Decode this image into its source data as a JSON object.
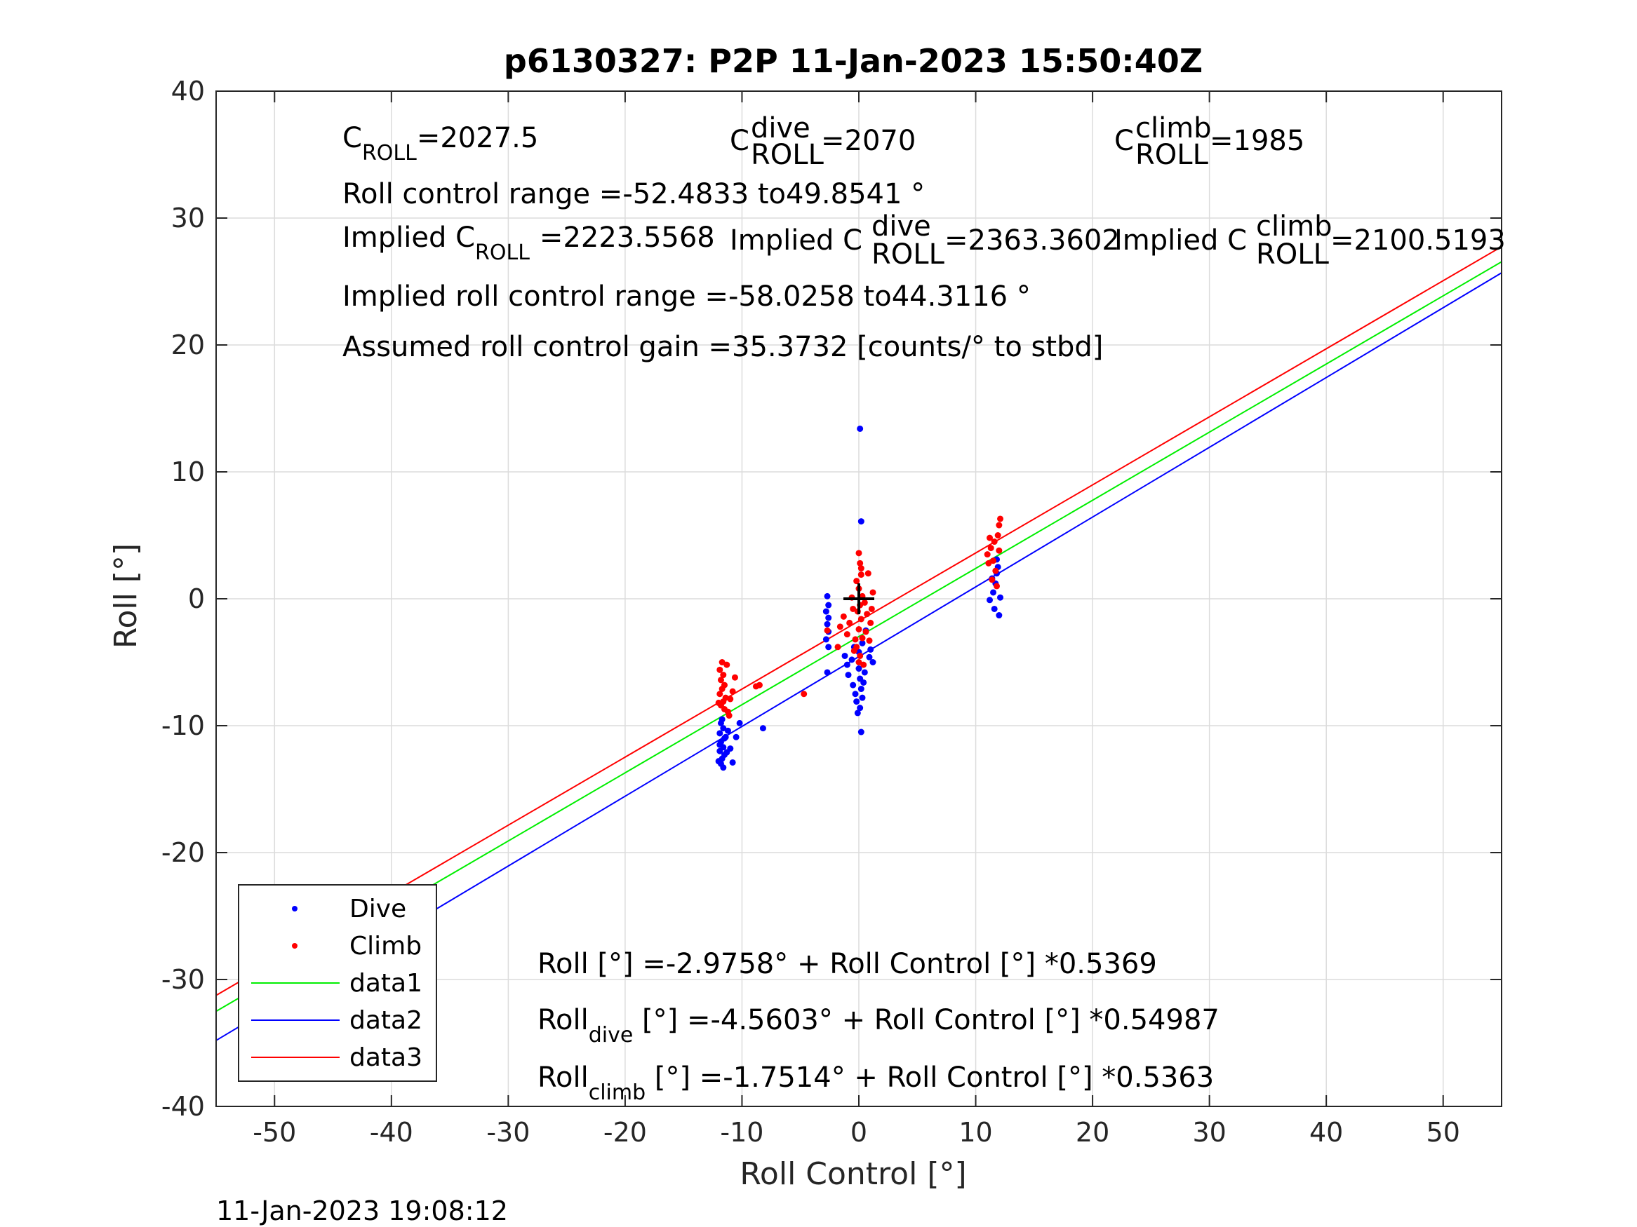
{
  "chart_data": {
    "type": "scatter",
    "title": "p6130327: P2P 11-Jan-2023 15:50:40Z",
    "xlabel": "Roll Control [°]",
    "ylabel": "Roll [°]",
    "xlim": [
      -55,
      55
    ],
    "ylim": [
      -40,
      40
    ],
    "xticks": [
      -50,
      -40,
      -30,
      -20,
      -10,
      0,
      10,
      20,
      30,
      40,
      50
    ],
    "yticks": [
      -40,
      -30,
      -20,
      -10,
      0,
      10,
      20,
      30,
      40
    ],
    "grid": true,
    "legend_position": "bottom-left",
    "timestamp": "11-Jan-2023 19:08:12",
    "series": [
      {
        "name": "Dive",
        "kind": "points",
        "color": "#0000ff",
        "points": [
          [
            -11.8,
            -9.8
          ],
          [
            -11.6,
            -10.2
          ],
          [
            -11.9,
            -10.6
          ],
          [
            -11.5,
            -11.0
          ],
          [
            -11.8,
            -11.3
          ],
          [
            -11.6,
            -11.7
          ],
          [
            -11.9,
            -12.0
          ],
          [
            -11.5,
            -12.3
          ],
          [
            -11.7,
            -12.6
          ],
          [
            -11.8,
            -13.0
          ],
          [
            -11.6,
            -13.3
          ],
          [
            -11.9,
            -11.5
          ],
          [
            -11.4,
            -10.9
          ],
          [
            -11.7,
            -9.5
          ],
          [
            -11.3,
            -12.1
          ],
          [
            -11.2,
            -10.4
          ],
          [
            -11.0,
            -11.8
          ],
          [
            -12.0,
            -12.8
          ],
          [
            -10.8,
            -12.9
          ],
          [
            -10.5,
            -10.9
          ],
          [
            -10.2,
            -9.8
          ],
          [
            -8.2,
            -10.2
          ],
          [
            -2.7,
            0.2
          ],
          [
            -2.6,
            -0.5
          ],
          [
            -2.8,
            -1.0
          ],
          [
            -2.6,
            -1.5
          ],
          [
            -2.7,
            -2.0
          ],
          [
            -2.6,
            -2.6
          ],
          [
            -2.8,
            -3.2
          ],
          [
            -2.6,
            -3.8
          ],
          [
            -2.7,
            -5.8
          ],
          [
            -1.2,
            -4.5
          ],
          [
            -1.0,
            -5.2
          ],
          [
            -0.9,
            -6.0
          ],
          [
            -0.6,
            -4.8
          ],
          [
            -0.5,
            -6.8
          ],
          [
            -0.3,
            -7.5
          ],
          [
            -0.2,
            -8.1
          ],
          [
            -0.1,
            -9.0
          ],
          [
            0.0,
            -5.5
          ],
          [
            0.1,
            -6.3
          ],
          [
            0.2,
            -7.1
          ],
          [
            0.3,
            -7.8
          ],
          [
            0.1,
            -8.6
          ],
          [
            0.2,
            -10.5
          ],
          [
            0.0,
            -4.2
          ],
          [
            0.3,
            -3.5
          ],
          [
            0.2,
            6.1
          ],
          [
            0.1,
            13.4
          ],
          [
            0.5,
            -5.8
          ],
          [
            0.4,
            -6.6
          ],
          [
            0.9,
            -4.6
          ],
          [
            1.0,
            -4.0
          ],
          [
            1.2,
            -5.0
          ],
          [
            -0.4,
            -3.8
          ],
          [
            0.6,
            -2.5
          ],
          [
            11.2,
            -0.1
          ],
          [
            11.5,
            0.5
          ],
          [
            11.7,
            1.2
          ],
          [
            11.4,
            1.6
          ],
          [
            11.8,
            2.0
          ],
          [
            11.9,
            2.5
          ],
          [
            12.0,
            -1.3
          ],
          [
            11.6,
            -0.8
          ],
          [
            11.8,
            3.1
          ],
          [
            12.1,
            0.1
          ]
        ]
      },
      {
        "name": "Climb",
        "kind": "points",
        "color": "#ff0000",
        "points": [
          [
            -11.7,
            -5.0
          ],
          [
            -11.3,
            -5.2
          ],
          [
            -11.9,
            -5.6
          ],
          [
            -11.6,
            -6.0
          ],
          [
            -11.8,
            -6.4
          ],
          [
            -11.5,
            -6.8
          ],
          [
            -11.7,
            -7.1
          ],
          [
            -11.9,
            -7.5
          ],
          [
            -11.4,
            -7.8
          ],
          [
            -11.6,
            -8.1
          ],
          [
            -11.8,
            -8.4
          ],
          [
            -11.5,
            -8.7
          ],
          [
            -11.2,
            -8.9
          ],
          [
            -11.0,
            -7.9
          ],
          [
            -12.0,
            -8.2
          ],
          [
            -10.8,
            -7.3
          ],
          [
            -10.6,
            -6.2
          ],
          [
            -11.1,
            -9.2
          ],
          [
            -8.5,
            -6.8
          ],
          [
            -8.8,
            -6.9
          ],
          [
            -4.7,
            -7.5
          ],
          [
            -2.7,
            -2.5
          ],
          [
            -1.8,
            -3.8
          ],
          [
            -1.6,
            -2.2
          ],
          [
            -1.3,
            -1.4
          ],
          [
            -1.0,
            -2.8
          ],
          [
            -0.8,
            -1.9
          ],
          [
            -0.5,
            -0.8
          ],
          [
            -0.3,
            -3.2
          ],
          [
            0.0,
            3.6
          ],
          [
            0.1,
            2.8
          ],
          [
            0.2,
            1.9
          ],
          [
            -0.2,
            1.4
          ],
          [
            0.0,
            0.8
          ],
          [
            0.3,
            0.2
          ],
          [
            0.1,
            -0.5
          ],
          [
            -0.1,
            -1.0
          ],
          [
            0.2,
            -1.6
          ],
          [
            0.0,
            -2.4
          ],
          [
            0.3,
            -3.1
          ],
          [
            -0.2,
            -3.8
          ],
          [
            0.1,
            -4.5
          ],
          [
            0.4,
            -5.2
          ],
          [
            0.5,
            -0.3
          ],
          [
            0.7,
            -1.2
          ],
          [
            0.8,
            2.0
          ],
          [
            1.0,
            -1.9
          ],
          [
            1.1,
            -0.8
          ],
          [
            1.2,
            0.5
          ],
          [
            0.6,
            -2.6
          ],
          [
            0.9,
            -3.3
          ],
          [
            -0.6,
            0.1
          ],
          [
            -0.4,
            -4.1
          ],
          [
            0.2,
            2.4
          ],
          [
            0.0,
            -5.0
          ],
          [
            11.0,
            3.5
          ],
          [
            11.3,
            4.0
          ],
          [
            11.6,
            4.5
          ],
          [
            11.9,
            5.0
          ],
          [
            12.0,
            5.8
          ],
          [
            12.1,
            6.3
          ],
          [
            11.5,
            3.0
          ],
          [
            11.2,
            4.8
          ],
          [
            11.7,
            2.2
          ],
          [
            11.4,
            1.5
          ],
          [
            11.8,
            1.0
          ],
          [
            12.0,
            3.8
          ],
          [
            11.1,
            2.8
          ]
        ]
      },
      {
        "name": "data1",
        "kind": "line",
        "color": "#00ee00",
        "intercept": -2.9758,
        "slope": 0.5369
      },
      {
        "name": "data2",
        "kind": "line",
        "color": "#0000ff",
        "intercept": -4.5603,
        "slope": 0.54987
      },
      {
        "name": "data3",
        "kind": "line",
        "color": "#ff0000",
        "intercept": -1.7514,
        "slope": 0.5363
      }
    ],
    "marker": {
      "x": 0,
      "y": 0,
      "color": "#000000"
    },
    "annotations": {
      "c_roll": {
        "base": "C",
        "sub": "ROLL",
        "value": "=2027.5"
      },
      "c_roll_dive": {
        "base": "C",
        "sup": "dive",
        "sub": "ROLL",
        "value": "=2070"
      },
      "c_roll_climb": {
        "base": "C",
        "sup": "climb",
        "sub": "ROLL",
        "value": "=1985"
      },
      "control_range": "Roll control range =-52.4833 to49.8541 °",
      "implied_c": {
        "prefix": "Implied C",
        "sub": "ROLL",
        "value": "=2223.5568"
      },
      "implied_c_dive": {
        "prefix": "Implied C",
        "sup": "dive",
        "sub": "ROLL",
        "value": "=2363.3602"
      },
      "implied_c_climb": {
        "prefix": "Implied C",
        "sup": "climb",
        "sub": "ROLL",
        "value": "=2100.5193"
      },
      "implied_range": "Implied roll control range =-58.0258 to44.3116 °",
      "gain": "Assumed roll control gain =35.3732 [counts/° to stbd]",
      "eq_all": "Roll [°] =-2.9758° + Roll Control [°] *0.5369",
      "eq_dive": {
        "base": "Roll",
        "sub": "dive",
        "rest": " [°] =-4.5603° + Roll Control [°] *0.54987"
      },
      "eq_climb": {
        "base": "Roll",
        "sub": "climb",
        "rest": " [°] =-1.7514° + Roll Control [°] *0.5363"
      }
    }
  }
}
